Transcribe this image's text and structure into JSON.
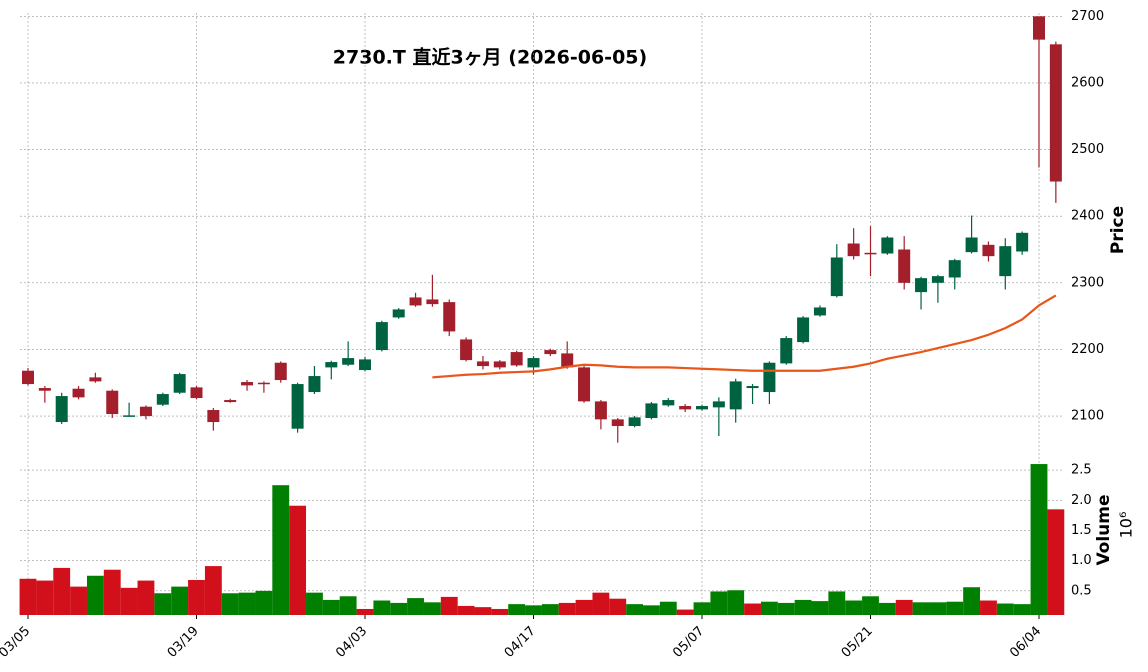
{
  "chart_data": {
    "type": "candlestick",
    "title": "2730.T  直近3ヶ月  (2026-06-05)",
    "x": [
      "03/05",
      "03/06",
      "03/09",
      "03/10",
      "03/11",
      "03/12",
      "03/13",
      "03/16",
      "03/17",
      "03/18",
      "03/19",
      "03/23",
      "03/24",
      "03/25",
      "03/26",
      "03/27",
      "03/30",
      "03/31",
      "04/01",
      "04/02",
      "04/03",
      "04/06",
      "04/07",
      "04/08",
      "04/09",
      "04/10",
      "04/13",
      "04/14",
      "04/15",
      "04/16",
      "04/17",
      "04/20",
      "04/21",
      "04/22",
      "04/23",
      "04/24",
      "04/27",
      "04/28",
      "04/30",
      "05/01",
      "05/07",
      "05/08",
      "05/11",
      "05/12",
      "05/13",
      "05/14",
      "05/15",
      "05/18",
      "05/19",
      "05/20",
      "05/21",
      "05/22",
      "05/25",
      "05/26",
      "05/27",
      "05/28",
      "05/29",
      "06/01",
      "06/02",
      "06/03",
      "06/04",
      "06/05"
    ],
    "open": [
      2168,
      2142,
      2091,
      2141,
      2158,
      2138,
      2099,
      2114,
      2117,
      2135,
      2143,
      2109,
      2124,
      2151,
      2150,
      2180,
      2081,
      2136,
      2173,
      2177,
      2169,
      2199,
      2248,
      2278,
      2275,
      2271,
      2215,
      2182,
      2182,
      2196,
      2173,
      2199,
      2194,
      2173,
      2122,
      2095,
      2085,
      2097,
      2116,
      2115,
      2110,
      2113,
      2110,
      2142,
      2136,
      2179,
      2211,
      2251,
      2280,
      2359,
      2345,
      2344,
      2350,
      2286,
      2300,
      2308,
      2346,
      2357,
      2310,
      2347,
      2700,
      2658
    ],
    "high": [
      2172,
      2145,
      2135,
      2145,
      2165,
      2140,
      2120,
      2116,
      2135,
      2165,
      2145,
      2112,
      2126,
      2154,
      2152,
      2182,
      2150,
      2175,
      2183,
      2212,
      2189,
      2243,
      2262,
      2285,
      2312,
      2275,
      2218,
      2190,
      2184,
      2198,
      2190,
      2201,
      2212,
      2175,
      2124,
      2097,
      2100,
      2121,
      2127,
      2118,
      2117,
      2128,
      2156,
      2148,
      2182,
      2220,
      2250,
      2266,
      2358,
      2382,
      2385,
      2370,
      2370,
      2309,
      2312,
      2336,
      2401,
      2362,
      2367,
      2377,
      2700,
      2662
    ],
    "low": [
      2146,
      2120,
      2088,
      2125,
      2150,
      2097,
      2099,
      2095,
      2115,
      2133,
      2125,
      2078,
      2120,
      2138,
      2135,
      2150,
      2075,
      2133,
      2155,
      2175,
      2167,
      2197,
      2246,
      2264,
      2264,
      2220,
      2182,
      2170,
      2170,
      2174,
      2162,
      2190,
      2171,
      2120,
      2080,
      2060,
      2083,
      2095,
      2114,
      2106,
      2108,
      2070,
      2090,
      2118,
      2118,
      2177,
      2209,
      2249,
      2278,
      2335,
      2310,
      2342,
      2290,
      2260,
      2270,
      2290,
      2344,
      2332,
      2290,
      2342,
      2473,
      2420
    ],
    "close": [
      2148,
      2138,
      2130,
      2128,
      2152,
      2103,
      2101,
      2100,
      2133,
      2163,
      2127,
      2091,
      2121,
      2146,
      2148,
      2154,
      2148,
      2160,
      2181,
      2187,
      2185,
      2241,
      2260,
      2266,
      2268,
      2227,
      2184,
      2175,
      2173,
      2176,
      2187,
      2193,
      2173,
      2122,
      2095,
      2085,
      2098,
      2119,
      2124,
      2110,
      2115,
      2122,
      2152,
      2145,
      2180,
      2217,
      2248,
      2263,
      2338,
      2340,
      2343,
      2368,
      2300,
      2307,
      2310,
      2334,
      2368,
      2340,
      2355,
      2375,
      2665,
      2452
    ],
    "up_color": "#006340",
    "down_color": "#a21f2b",
    "ma": {
      "color": "#e8561b",
      "values": [
        null,
        null,
        null,
        null,
        null,
        null,
        null,
        null,
        null,
        null,
        null,
        null,
        null,
        null,
        null,
        null,
        null,
        null,
        null,
        null,
        null,
        null,
        null,
        null,
        2158,
        2160,
        2162,
        2163,
        2165,
        2166,
        2167,
        2170,
        2174,
        2177,
        2176,
        2174,
        2173,
        2173,
        2173,
        2172,
        2171,
        2170,
        2169,
        2168,
        2168,
        2168,
        2168,
        2168,
        2171,
        2174,
        2179,
        2186,
        2191,
        2196,
        2202,
        2208,
        2214,
        2222,
        2232,
        2245,
        2266,
        2281
      ]
    },
    "ylim": [
      2040,
      2705
    ],
    "yticks": [
      2100,
      2200,
      2300,
      2400,
      2500,
      2600,
      2700
    ],
    "ylabel": "Price",
    "volume": {
      "up_color": "#007f00",
      "down_color": "#d2101b",
      "values": [
        0.7,
        0.67,
        0.88,
        0.57,
        0.75,
        0.85,
        0.55,
        0.67,
        0.46,
        0.57,
        0.68,
        0.91,
        0.46,
        0.47,
        0.5,
        2.25,
        1.91,
        0.47,
        0.35,
        0.41,
        0.2,
        0.34,
        0.3,
        0.38,
        0.31,
        0.4,
        0.25,
        0.23,
        0.2,
        0.28,
        0.26,
        0.28,
        0.3,
        0.35,
        0.47,
        0.37,
        0.28,
        0.26,
        0.32,
        0.19,
        0.31,
        0.49,
        0.51,
        0.29,
        0.32,
        0.3,
        0.35,
        0.33,
        0.49,
        0.34,
        0.41,
        0.3,
        0.35,
        0.31,
        0.31,
        0.32,
        0.56,
        0.34,
        0.29,
        0.28,
        2.6,
        1.85
      ]
    },
    "volume_ylim": [
      0.1,
      2.75
    ],
    "volume_yticks": [
      0.5,
      {
        "value": 1,
        "label": "1.0"
      },
      1.5,
      {
        "value": 2,
        "label": "2.0"
      },
      2.5
    ],
    "volume_label": "Volume",
    "volume_multiplier": "10⁶",
    "xticks": [
      "03/05",
      "03/19",
      "04/03",
      "04/17",
      "05/07",
      "05/21",
      "06/04"
    ],
    "grid": true
  }
}
